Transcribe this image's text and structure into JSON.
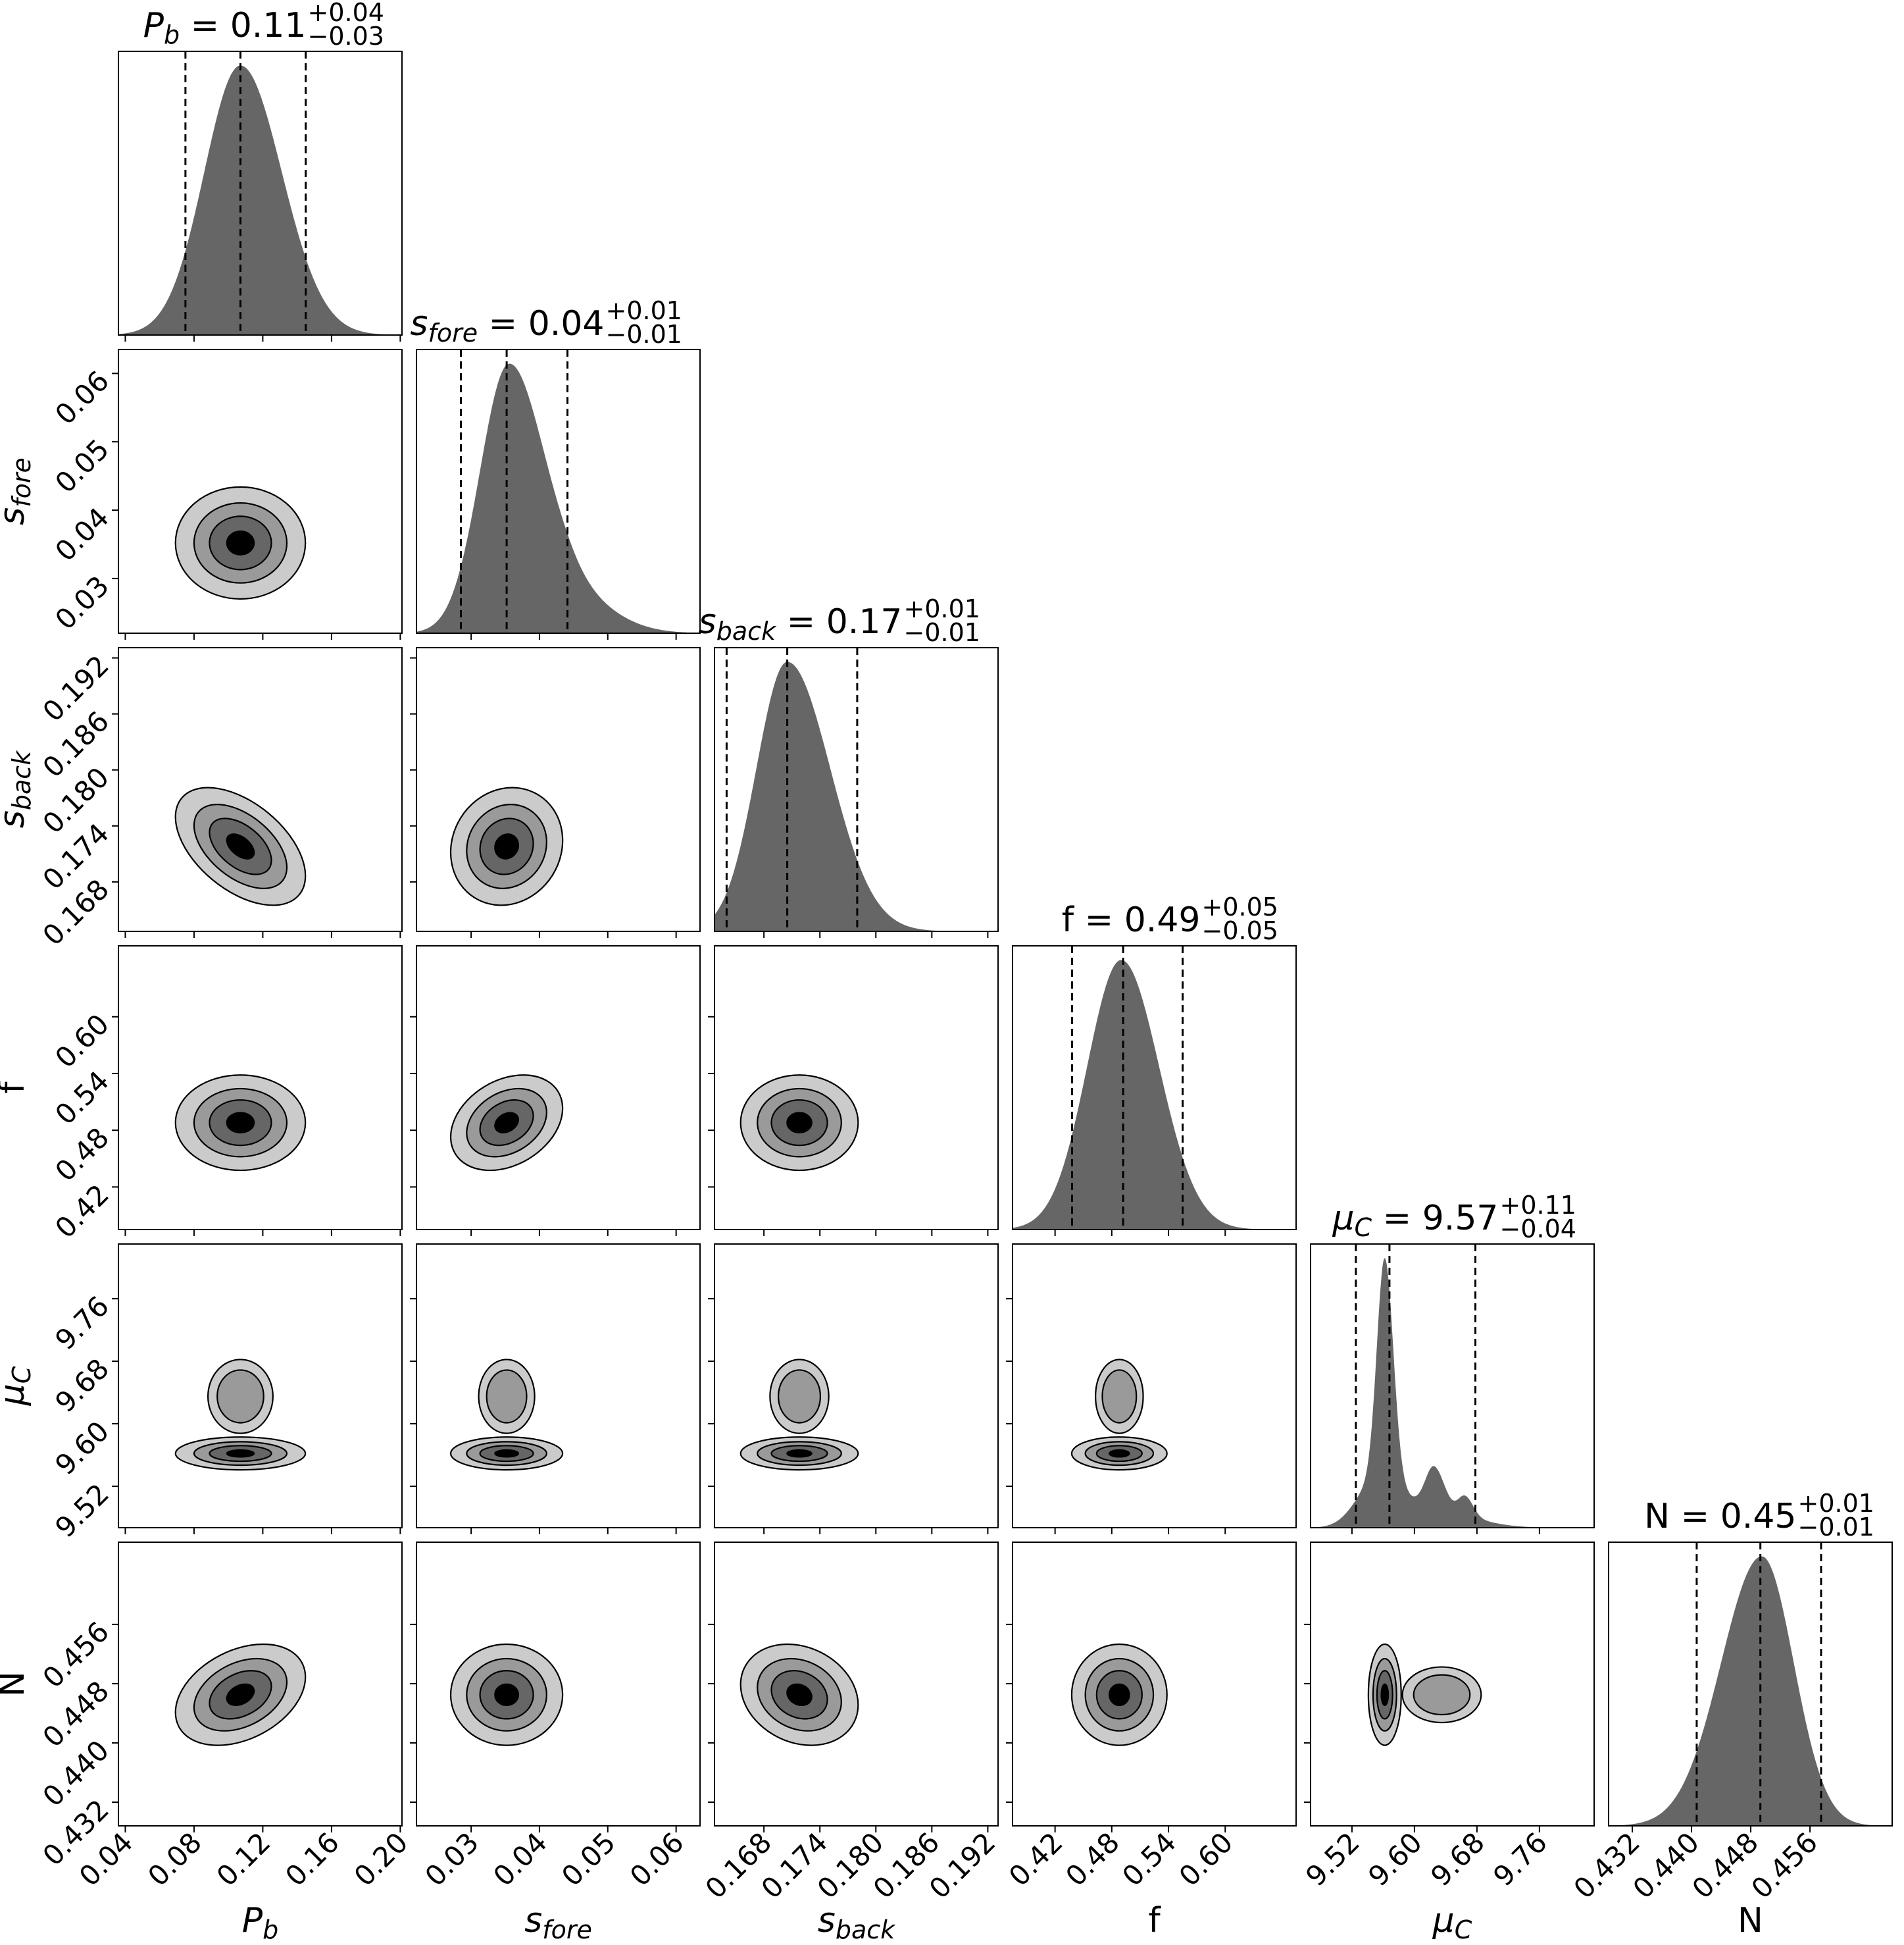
{
  "chart_data": {
    "type": "corner",
    "title": "",
    "grid": false,
    "params": [
      {
        "key": "Pb",
        "sym": "P",
        "sub": "b",
        "italic": true,
        "value": "0.11",
        "plus": "+0.04",
        "minus": "−0.03",
        "range": [
          0.036,
          0.201
        ],
        "ticks": [
          "0.04",
          "0.08",
          "0.12",
          "0.16",
          "0.20"
        ],
        "quantiles": [
          0.075,
          0.107,
          0.145
        ],
        "mode": 0.107,
        "contour_sigma": 0.036,
        "density": [
          {
            "mu": 0.107,
            "sigma_lo": 0.021,
            "sigma_hi": 0.024,
            "weight": 1.0
          }
        ]
      },
      {
        "key": "sfore",
        "sym": "s",
        "sub": "fore",
        "italic": true,
        "value": "0.04",
        "plus": "+0.01",
        "minus": "−0.01",
        "range": [
          0.022,
          0.0635
        ],
        "ticks": [
          "0.03",
          "0.04",
          "0.05",
          "0.06"
        ],
        "quantiles": [
          0.0285,
          0.0352,
          0.0441
        ],
        "mode": 0.0352,
        "contour_sigma": 0.0078,
        "density": [
          {
            "mu": 0.0355,
            "sigma_lo": 0.0042,
            "sigma_hi": 0.0052,
            "weight": 1.0
          },
          {
            "mu": 0.045,
            "sigma_lo": 0.004,
            "sigma_hi": 0.006,
            "weight": 0.12
          }
        ]
      },
      {
        "key": "sback",
        "sym": "s",
        "sub": "back",
        "italic": true,
        "value": "0.17",
        "plus": "+0.01",
        "minus": "−0.01",
        "range": [
          0.1627,
          0.1931
        ],
        "ticks": [
          "0.168",
          "0.174",
          "0.180",
          "0.186",
          "0.192"
        ],
        "quantiles": [
          0.164,
          0.1705,
          0.178
        ],
        "mode": 0.1718,
        "contour_sigma": 0.006,
        "density": [
          {
            "mu": 0.1705,
            "sigma_lo": 0.0033,
            "sigma_hi": 0.0046,
            "weight": 1.0
          }
        ]
      },
      {
        "key": "f",
        "sym": "f",
        "sub": "",
        "italic": false,
        "value": "0.49",
        "plus": "+0.05",
        "minus": "−0.05",
        "range": [
          0.375,
          0.675
        ],
        "ticks": [
          "0.42",
          "0.48",
          "0.54",
          "0.60"
        ],
        "quantiles": [
          0.438,
          0.492,
          0.555
        ],
        "mode": 0.488,
        "contour_sigma": 0.048,
        "density": [
          {
            "mu": 0.49,
            "sigma_lo": 0.036,
            "sigma_hi": 0.04,
            "weight": 1.0
          }
        ]
      },
      {
        "key": "muC",
        "sym": "μ",
        "sub": "C",
        "italic": true,
        "value": "9.57",
        "plus": "+0.11",
        "minus": "−0.04",
        "range": [
          9.467,
          9.83
        ],
        "ticks": [
          "9.52",
          "9.60",
          "9.68",
          "9.76"
        ],
        "quantiles": [
          9.525,
          9.568,
          9.678
        ],
        "mode": 9.562,
        "contour_sigma": 0.02,
        "secondary": {
          "center": 9.635,
          "sigma": 0.03
        },
        "density": [
          {
            "mu": 9.562,
            "sigma_lo": 0.01,
            "sigma_hi": 0.011,
            "weight": 0.82
          },
          {
            "mu": 9.55,
            "sigma_lo": 0.025,
            "sigma_hi": 0.03,
            "weight": 0.16
          },
          {
            "mu": 9.625,
            "sigma_lo": 0.011,
            "sigma_hi": 0.013,
            "weight": 0.15
          },
          {
            "mu": 9.665,
            "sigma_lo": 0.009,
            "sigma_hi": 0.01,
            "weight": 0.07
          },
          {
            "mu": 9.62,
            "sigma_lo": 0.04,
            "sigma_hi": 0.05,
            "weight": 0.07
          }
        ]
      },
      {
        "key": "N",
        "sym": "N",
        "sub": "",
        "italic": false,
        "value": "0.45",
        "plus": "+0.01",
        "minus": "−0.01",
        "range": [
          0.4288,
          0.4671
        ],
        "ticks": [
          "0.432",
          "0.440",
          "0.448",
          "0.456"
        ],
        "quantiles": [
          0.4407,
          0.4493,
          0.4575
        ],
        "mode": 0.4465,
        "contour_sigma": 0.0065,
        "density": [
          {
            "mu": 0.4495,
            "sigma_lo": 0.0055,
            "sigma_hi": 0.0043,
            "weight": 1.0
          }
        ]
      }
    ],
    "correlations": [
      {
        "x": "Pb",
        "y": "sback",
        "rho": -0.5
      },
      {
        "x": "Pb",
        "y": "N",
        "rho": 0.35
      },
      {
        "x": "sfore",
        "y": "f",
        "rho": 0.3
      },
      {
        "x": "sback",
        "y": "N",
        "rho": -0.2
      },
      {
        "x": "sfore",
        "y": "sback",
        "rho": 0.1
      }
    ],
    "contour_levels_sigma": [
      1.05,
      0.75,
      0.5,
      0.22
    ],
    "colors": {
      "hist": "#666666",
      "levels": [
        "#cbcbcb",
        "#9a9a9a",
        "#666666",
        "#000000"
      ],
      "line": "#000000"
    }
  }
}
